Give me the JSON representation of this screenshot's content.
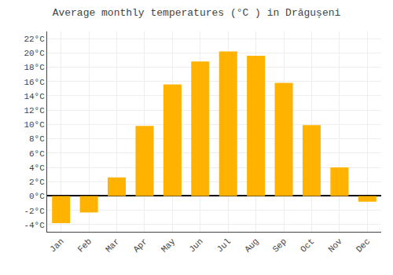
{
  "chart_data": {
    "type": "bar",
    "title": "Average monthly temperatures (°C ) in Drăgușeni",
    "categories": [
      "Jan",
      "Feb",
      "Mar",
      "Apr",
      "May",
      "Jun",
      "Jul",
      "Aug",
      "Sep",
      "Oct",
      "Nov",
      "Dec"
    ],
    "values": [
      -3.8,
      -2.3,
      2.6,
      9.8,
      15.6,
      18.8,
      20.2,
      19.6,
      15.8,
      9.9,
      4.0,
      -0.8
    ],
    "color": "#FFB300",
    "ylim": [
      -5,
      23
    ],
    "yticks": [
      {
        "value": -4,
        "label": "-4°C"
      },
      {
        "value": -2,
        "label": "-2°C"
      },
      {
        "value": 0,
        "label": "0°C"
      },
      {
        "value": 2,
        "label": "2°C"
      },
      {
        "value": 4,
        "label": "4°C"
      },
      {
        "value": 6,
        "label": "6°C"
      },
      {
        "value": 8,
        "label": "8°C"
      },
      {
        "value": 10,
        "label": "10°C"
      },
      {
        "value": 12,
        "label": "12°C"
      },
      {
        "value": 14,
        "label": "14°C"
      },
      {
        "value": 16,
        "label": "16°C"
      },
      {
        "value": 18,
        "label": "18°C"
      },
      {
        "value": 20,
        "label": "20°C"
      },
      {
        "value": 22,
        "label": "22°C"
      }
    ],
    "grid": true
  }
}
